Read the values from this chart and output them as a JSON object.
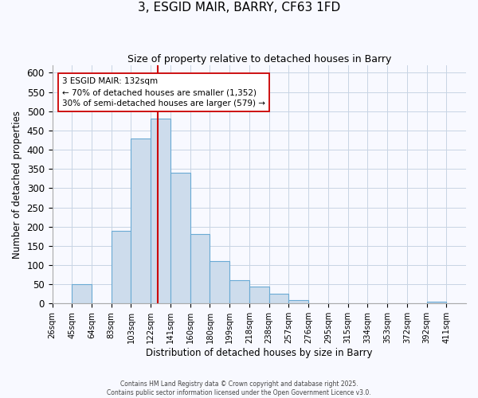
{
  "title1": "3, ESGID MAIR, BARRY, CF63 1FD",
  "title2": "Size of property relative to detached houses in Barry",
  "xlabel": "Distribution of detached houses by size in Barry",
  "ylabel": "Number of detached properties",
  "bar_heights": [
    0,
    50,
    0,
    190,
    430,
    480,
    340,
    180,
    110,
    60,
    45,
    25,
    10,
    0,
    0,
    0,
    0,
    0,
    0,
    5,
    0
  ],
  "bar_color": "#cddcec",
  "bar_edgecolor": "#6aaad4",
  "vline_bin": 5.35,
  "vline_color": "#cc0000",
  "annotation_text": "3 ESGID MAIR: 132sqm\n← 70% of detached houses are smaller (1,352)\n30% of semi-detached houses are larger (579) →",
  "annotation_box_edgecolor": "#cc0000",
  "annotation_box_facecolor": "#ffffff",
  "ylim": [
    0,
    620
  ],
  "tick_labels": [
    "26sqm",
    "45sqm",
    "64sqm",
    "83sqm",
    "103sqm",
    "122sqm",
    "141sqm",
    "160sqm",
    "180sqm",
    "199sqm",
    "218sqm",
    "238sqm",
    "257sqm",
    "276sqm",
    "295sqm",
    "315sqm",
    "334sqm",
    "353sqm",
    "372sqm",
    "392sqm",
    "411sqm"
  ],
  "footer1": "Contains HM Land Registry data © Crown copyright and database right 2025.",
  "footer2": "Contains public sector information licensed under the Open Government Licence v3.0.",
  "grid_color": "#c8d4e4",
  "background_color": "#f8f9ff",
  "yticks": [
    0,
    50,
    100,
    150,
    200,
    250,
    300,
    350,
    400,
    450,
    500,
    550,
    600
  ]
}
